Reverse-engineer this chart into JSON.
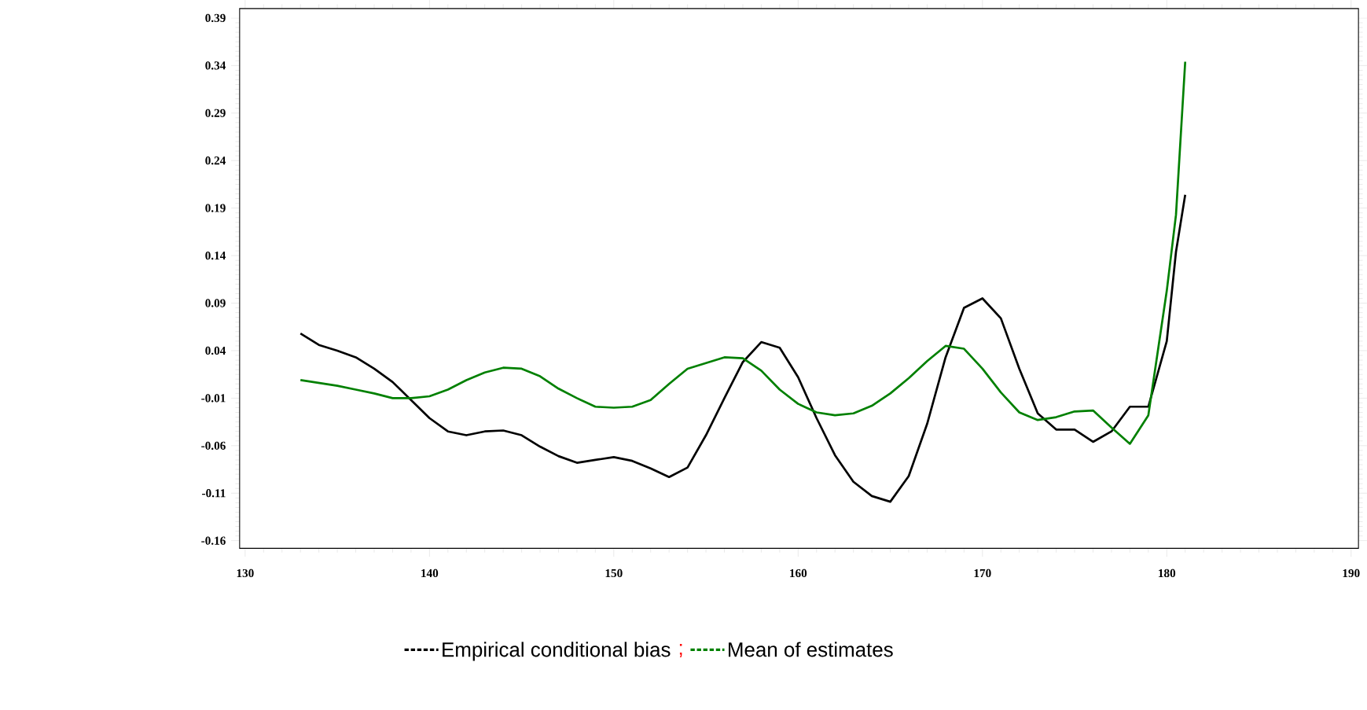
{
  "chart_data": {
    "type": "line",
    "xlim": [
      129.7,
      190.4
    ],
    "ylim": [
      -0.168,
      0.4
    ],
    "xticks": [
      130,
      140,
      150,
      160,
      170,
      180,
      190
    ],
    "yticks": [
      -0.16,
      -0.11,
      -0.06,
      -0.01,
      0.04,
      0.09,
      0.14,
      0.19,
      0.24,
      0.29,
      0.34,
      0.39
    ],
    "x": [
      133,
      134,
      135,
      136,
      137,
      138,
      139,
      140,
      141,
      142,
      143,
      144,
      145,
      146,
      147,
      148,
      149,
      150,
      151,
      152,
      153,
      154,
      155,
      156,
      157,
      158,
      159,
      160,
      161,
      162,
      163,
      164,
      165,
      166,
      167,
      168,
      169,
      170,
      171,
      172,
      173,
      174,
      175,
      176,
      177,
      178,
      179,
      180,
      180.5,
      181
    ],
    "series": [
      {
        "name": "Empirical conditional bias",
        "color": "#000000",
        "values": [
          0.058,
          0.046,
          0.04,
          0.033,
          0.021,
          0.007,
          -0.012,
          -0.031,
          -0.045,
          -0.049,
          -0.045,
          -0.044,
          -0.049,
          -0.061,
          -0.071,
          -0.078,
          -0.075,
          -0.072,
          -0.076,
          -0.084,
          -0.093,
          -0.083,
          -0.049,
          -0.01,
          0.028,
          0.049,
          0.043,
          0.012,
          -0.031,
          -0.07,
          -0.098,
          -0.113,
          -0.119,
          -0.092,
          -0.037,
          0.033,
          0.085,
          0.095,
          0.074,
          0.021,
          -0.026,
          -0.043,
          -0.043,
          -0.056,
          -0.045,
          -0.019,
          -0.019,
          0.05,
          0.144,
          0.204
        ]
      },
      {
        "name": "Mean of estimates",
        "color": "#008000",
        "values": [
          0.009,
          0.006,
          0.003,
          -0.001,
          -0.005,
          -0.01,
          -0.01,
          -0.008,
          -0.001,
          0.009,
          0.017,
          0.022,
          0.021,
          0.013,
          0.0,
          -0.01,
          -0.019,
          -0.02,
          -0.019,
          -0.012,
          0.005,
          0.021,
          0.027,
          0.033,
          0.032,
          0.019,
          -0.001,
          -0.016,
          -0.025,
          -0.028,
          -0.026,
          -0.018,
          -0.005,
          0.011,
          0.029,
          0.045,
          0.042,
          0.021,
          -0.004,
          -0.025,
          -0.033,
          -0.03,
          -0.024,
          -0.023,
          -0.041,
          -0.058,
          -0.028,
          0.103,
          0.183,
          0.344
        ]
      }
    ],
    "legend": "bottom",
    "annotations": [
      ";"
    ]
  }
}
